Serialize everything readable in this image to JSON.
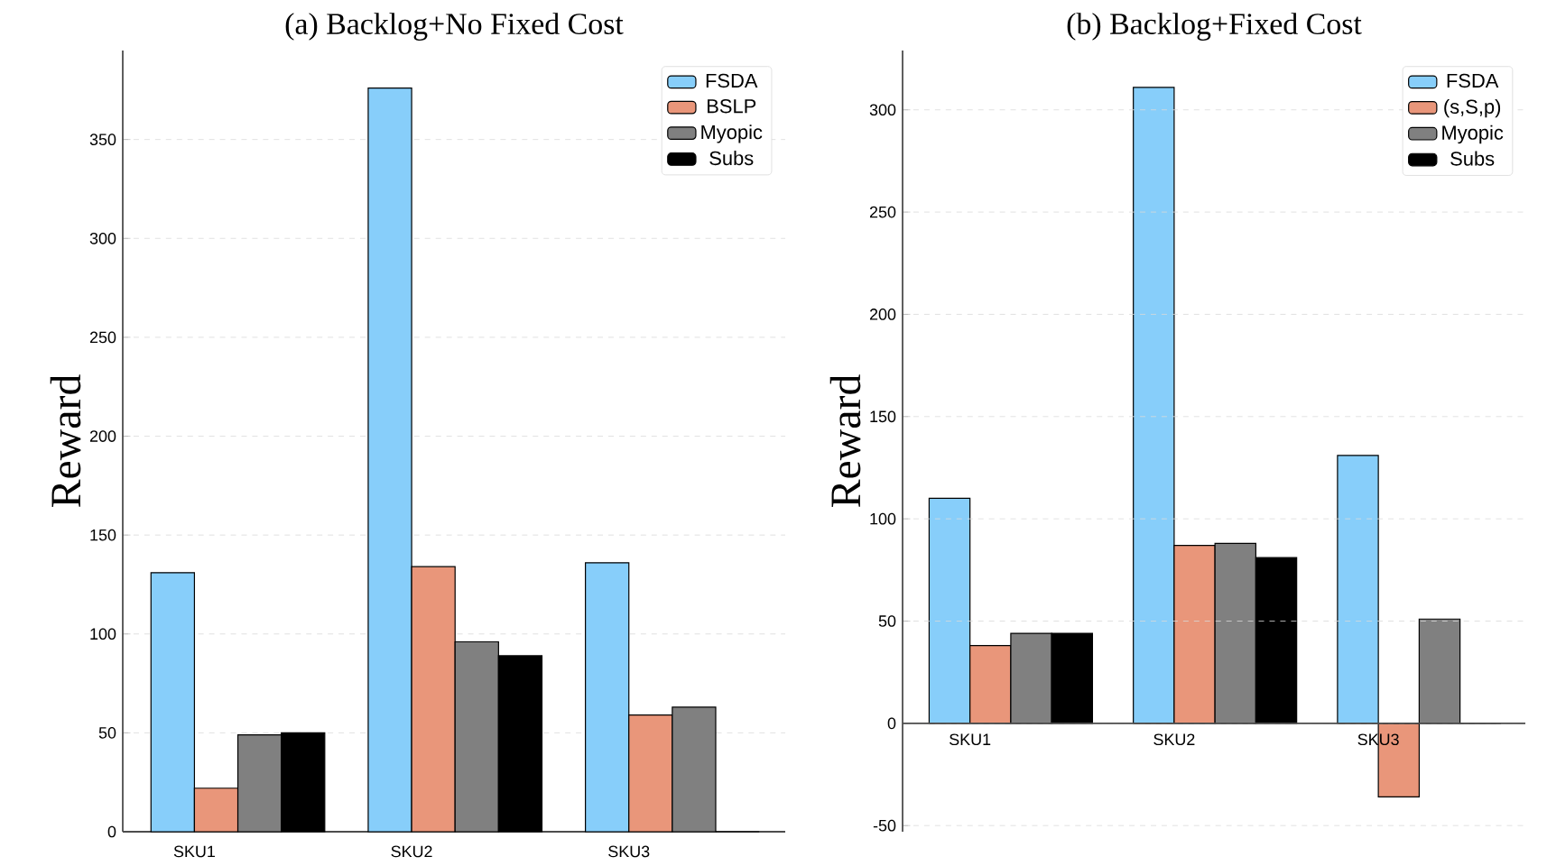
{
  "chart_data": [
    {
      "type": "bar",
      "title": "(a) Backlog+No Fixed Cost",
      "ylabel": "Reward",
      "categories": [
        "SKU1",
        "SKU2",
        "SKU3"
      ],
      "series": [
        {
          "name": "FSDA",
          "color": "#87cefa",
          "values": [
            131,
            376,
            136
          ]
        },
        {
          "name": "BSLP",
          "color": "#e9967a",
          "values": [
            22,
            134,
            59
          ]
        },
        {
          "name": "Myopic",
          "color": "#808080",
          "values": [
            49,
            96,
            63
          ]
        },
        {
          "name": "Subs",
          "color": "#000000",
          "values": [
            50,
            89,
            0
          ]
        }
      ],
      "ylim": [
        0,
        395
      ],
      "yticks": [
        0,
        50,
        100,
        150,
        200,
        250,
        300,
        350
      ],
      "grid": "y",
      "legend": "top right"
    },
    {
      "type": "bar",
      "title": "(b) Backlog+Fixed Cost",
      "ylabel": "Reward",
      "categories": [
        "SKU1",
        "SKU2",
        "SKU3"
      ],
      "series": [
        {
          "name": "FSDA",
          "color": "#87cefa",
          "values": [
            110,
            311,
            131
          ]
        },
        {
          "name": "(s,S,p)",
          "color": "#e9967a",
          "values": [
            38,
            87,
            -36
          ]
        },
        {
          "name": "Myopic",
          "color": "#808080",
          "values": [
            44,
            88,
            51
          ]
        },
        {
          "name": "Subs",
          "color": "#000000",
          "values": [
            44,
            81,
            0
          ]
        }
      ],
      "ylim": [
        -53,
        329
      ],
      "yticks": [
        -50,
        0,
        50,
        100,
        150,
        200,
        250,
        300
      ],
      "grid": "y",
      "legend": "top right"
    }
  ]
}
